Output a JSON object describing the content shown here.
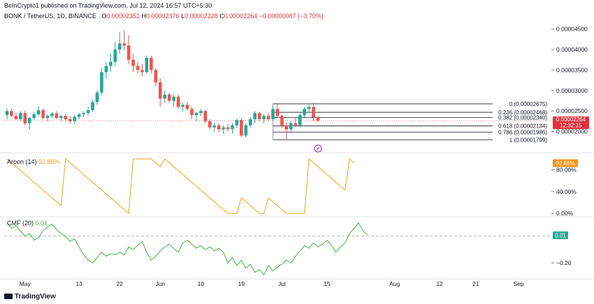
{
  "attribution": "BeInCrypto1 published on TradingView.com, Jul 12, 2024 16:57 UTC+5:30",
  "symbol_line": "BONK / TetherUS, 1D, BINANCE",
  "ohlc": {
    "o_label": "O",
    "o_value": "0.00002351",
    "h_label": "H",
    "h_value": "0.00002376",
    "l_label": "L",
    "l_value": "0.00002228",
    "c_label": "C",
    "c_value": "0.00002264",
    "change": "−0.00000087 (−3.70%)"
  },
  "brand": "TradingView",
  "colors": {
    "up": "#26a69a",
    "down": "#ef5350",
    "aroon": "#f7a21b",
    "cmf": "#4caf50",
    "fib": "#131722",
    "price_tag": "#e0313c",
    "aroon_tag": "#f7931a",
    "cmf_tag": "#22ab94"
  },
  "chart_data": [
    {
      "type": "candlestick",
      "title": "BONK / TetherUS, 1D, BINANCE",
      "x_tick_labels": [
        "May",
        "13",
        "22",
        "Jun",
        "10",
        "19",
        "Jul",
        "15",
        "Aug",
        "12",
        "21",
        "Sep"
      ],
      "y_tick_labels": [
        "0.00004500",
        "0.00004000",
        "0.00003500",
        "0.00003000",
        "0.00002500",
        "0.00002000"
      ],
      "ylim": [
        1.55e-05,
        4.7e-05
      ],
      "current_price_label": "0.00002264",
      "countdown_label": "12:32:15",
      "candles_ohlc": [
        [
          2.4e-05,
          2.56e-05,
          2.3e-05,
          2.5e-05
        ],
        [
          2.5e-05,
          2.56e-05,
          2.35e-05,
          2.38e-05
        ],
        [
          2.38e-05,
          2.46e-05,
          2.28e-05,
          2.3e-05
        ],
        [
          2.3e-05,
          2.5e-05,
          2.25e-05,
          2.45e-05
        ],
        [
          2.45e-05,
          2.52e-05,
          2.15e-05,
          2.2e-05
        ],
        [
          2.2e-05,
          2.35e-05,
          2.05e-05,
          2.33e-05
        ],
        [
          2.33e-05,
          2.48e-05,
          2.28e-05,
          2.42e-05
        ],
        [
          2.42e-05,
          2.6e-05,
          2.38e-05,
          2.52e-05
        ],
        [
          2.52e-05,
          2.56e-05,
          2.3e-05,
          2.33e-05
        ],
        [
          2.33e-05,
          2.42e-05,
          2.25e-05,
          2.38e-05
        ],
        [
          2.38e-05,
          2.48e-05,
          2.33e-05,
          2.44e-05
        ],
        [
          2.44e-05,
          2.5e-05,
          2.3e-05,
          2.33e-05
        ],
        [
          2.33e-05,
          2.4e-05,
          2.26e-05,
          2.38e-05
        ],
        [
          2.38e-05,
          2.43e-05,
          2.25e-05,
          2.3e-05
        ],
        [
          2.3e-05,
          2.38e-05,
          2.2e-05,
          2.25e-05
        ],
        [
          2.25e-05,
          2.4e-05,
          2.18e-05,
          2.36e-05
        ],
        [
          2.36e-05,
          2.45e-05,
          2.3e-05,
          2.42e-05
        ],
        [
          2.42e-05,
          2.5e-05,
          2.35e-05,
          2.45e-05
        ],
        [
          2.45e-05,
          2.6e-05,
          2.4e-05,
          2.52e-05
        ],
        [
          2.52e-05,
          2.78e-05,
          2.48e-05,
          2.72e-05
        ],
        [
          2.72e-05,
          3e-05,
          2.65e-05,
          2.95e-05
        ],
        [
          2.95e-05,
          3.55e-05,
          2.9e-05,
          3.45e-05
        ],
        [
          3.45e-05,
          3.7e-05,
          3.3e-05,
          3.6e-05
        ],
        [
          3.6e-05,
          3.9e-05,
          3.45e-05,
          3.7e-05
        ],
        [
          3.7e-05,
          4.2e-05,
          3.6e-05,
          4e-05
        ],
        [
          4e-05,
          4.42e-05,
          3.9e-05,
          4.15e-05
        ],
        [
          4.15e-05,
          4.48e-05,
          3.98e-05,
          4.1e-05
        ],
        [
          4.1e-05,
          4.35e-05,
          3.65e-05,
          3.75e-05
        ],
        [
          3.75e-05,
          3.9e-05,
          3.45e-05,
          3.6e-05
        ],
        [
          3.6e-05,
          3.7e-05,
          3.42e-05,
          3.5e-05
        ],
        [
          3.5e-05,
          3.65e-05,
          3.35e-05,
          3.45e-05
        ],
        [
          3.45e-05,
          3.85e-05,
          3.4e-05,
          3.8e-05
        ],
        [
          3.8e-05,
          3.85e-05,
          3.42e-05,
          3.5e-05
        ],
        [
          3.5e-05,
          3.55e-05,
          3.1e-05,
          3.2e-05
        ],
        [
          3.2e-05,
          3.3e-05,
          2.6e-05,
          2.8e-05
        ],
        [
          2.8e-05,
          3e-05,
          2.7e-05,
          2.9e-05
        ],
        [
          2.9e-05,
          2.95e-05,
          2.7e-05,
          2.75e-05
        ],
        [
          2.75e-05,
          2.9e-05,
          2.62e-05,
          2.85e-05
        ],
        [
          2.85e-05,
          2.9e-05,
          2.55e-05,
          2.6e-05
        ],
        [
          2.6e-05,
          2.7e-05,
          2.48e-05,
          2.65e-05
        ],
        [
          2.65e-05,
          2.72e-05,
          2.5e-05,
          2.55e-05
        ],
        [
          2.55e-05,
          2.6e-05,
          2.3e-05,
          2.4e-05
        ],
        [
          2.4e-05,
          2.48e-05,
          2.25e-05,
          2.45e-05
        ],
        [
          2.45e-05,
          2.55e-05,
          2.38e-05,
          2.5e-05
        ],
        [
          2.5e-05,
          2.52e-05,
          2.2e-05,
          2.25e-05
        ],
        [
          2.25e-05,
          2.3e-05,
          2.05e-05,
          2.1e-05
        ],
        [
          2.1e-05,
          2.22e-05,
          2e-05,
          2.15e-05
        ],
        [
          2.15e-05,
          2.2e-05,
          1.98e-05,
          2.05e-05
        ],
        [
          2.05e-05,
          2.15e-05,
          1.95e-05,
          2.1e-05
        ],
        [
          2.1e-05,
          2.18e-05,
          2e-05,
          2.06e-05
        ],
        [
          2.06e-05,
          2.2e-05,
          1.95e-05,
          2.15e-05
        ],
        [
          2.15e-05,
          2.32e-05,
          2.08e-05,
          2.28e-05
        ],
        [
          2.28e-05,
          2.33e-05,
          1.86e-05,
          1.9e-05
        ],
        [
          1.9e-05,
          2.2e-05,
          1.85e-05,
          2.15e-05
        ],
        [
          2.15e-05,
          2.35e-05,
          2.1e-05,
          2.3e-05
        ],
        [
          2.3e-05,
          2.5e-05,
          2.2e-05,
          2.45e-05
        ],
        [
          2.45e-05,
          2.48e-05,
          2.25e-05,
          2.3e-05
        ],
        [
          2.3e-05,
          2.42e-05,
          2.2e-05,
          2.38e-05
        ],
        [
          2.38e-05,
          2.45e-05,
          2.25e-05,
          2.3e-05
        ],
        [
          2.3e-05,
          2.62e-05,
          2.25e-05,
          2.55e-05
        ],
        [
          2.55e-05,
          2.67e-05,
          2.35e-05,
          2.38e-05
        ],
        [
          2.38e-05,
          2.42e-05,
          2.08e-05,
          2.15e-05
        ],
        [
          2.15e-05,
          2.22e-05,
          1.8e-05,
          2.05e-05
        ],
        [
          2.05e-05,
          2.25e-05,
          2e-05,
          2.2e-05
        ],
        [
          2.2e-05,
          2.35e-05,
          2.1e-05,
          2.15e-05
        ],
        [
          2.15e-05,
          2.45e-05,
          2.1e-05,
          2.4e-05
        ],
        [
          2.4e-05,
          2.6e-05,
          2.35e-05,
          2.55e-05
        ],
        [
          2.55e-05,
          2.65e-05,
          2.45e-05,
          2.6e-05
        ],
        [
          2.6e-05,
          2.7e-05,
          2.25e-05,
          2.351e-05
        ],
        [
          2.351e-05,
          2.376e-05,
          2.228e-05,
          2.264e-05
        ]
      ],
      "fibonacci": [
        {
          "label": "0 (0.00002675)",
          "value": 2.675e-05
        },
        {
          "label": "0.236 (0.00002468)",
          "value": 2.468e-05
        },
        {
          "label": "0.382 (0.00002340)",
          "value": 2.34e-05
        },
        {
          "label": "0.618 (0.00002134)",
          "value": 2.134e-05
        },
        {
          "label": "0.786 (0.00001986)",
          "value": 1.986e-05
        },
        {
          "label": "1 (0.00001799)",
          "value": 1.799e-05
        }
      ]
    },
    {
      "type": "line",
      "title": "Aroon (14)",
      "current_label": "92.86%",
      "y_tick_labels": [
        "80.00%",
        "40.00%",
        "0.00%"
      ],
      "ylim": [
        -5,
        105
      ],
      "values": [
        100,
        92.9,
        85.7,
        78.6,
        71.4,
        64.3,
        57.1,
        50,
        42.9,
        35.7,
        28.6,
        21.4,
        14.3,
        100,
        92.9,
        85.7,
        78.6,
        71.4,
        64.3,
        57.1,
        50,
        42.9,
        35.7,
        28.6,
        21.4,
        14.3,
        7.1,
        0,
        100,
        100,
        100,
        100,
        100,
        92.9,
        85.7,
        100,
        92.9,
        85.7,
        78.6,
        71.4,
        64.3,
        57.1,
        50,
        42.9,
        35.7,
        28.6,
        21.4,
        14.3,
        7.1,
        0,
        0,
        0,
        28.6,
        21.4,
        14.3,
        7.1,
        0,
        0,
        28.6,
        21.4,
        14.3,
        7.1,
        0,
        0,
        0,
        0,
        0,
        100,
        92.9,
        85.7,
        78.6,
        71.4,
        64.3,
        57.1,
        50,
        42.9,
        100,
        92.86
      ],
      "legend_value": "92.86%"
    },
    {
      "type": "line",
      "title": "CMF (20)",
      "legend_value": "0.01",
      "current_label": "0.01",
      "y_tick_labels": [
        "−0.20"
      ],
      "ylim": [
        -0.32,
        0.14
      ],
      "zero_line": 0,
      "values": [
        0.1,
        0.06,
        0.08,
        0.04,
        0.0,
        0.02,
        -0.03,
        -0.01,
        0.04,
        0.07,
        0.09,
        0.05,
        0.02,
        0.0,
        -0.04,
        -0.02,
        -0.08,
        -0.14,
        -0.18,
        -0.2,
        -0.16,
        -0.12,
        -0.15,
        -0.13,
        -0.14,
        -0.12,
        -0.14,
        -0.08,
        -0.1,
        -0.07,
        -0.04,
        -0.12,
        -0.18,
        -0.15,
        -0.11,
        -0.08,
        -0.06,
        -0.09,
        -0.12,
        -0.05,
        -0.03,
        -0.06,
        -0.09,
        -0.07,
        -0.1,
        -0.08,
        -0.11,
        -0.09,
        -0.12,
        -0.2,
        -0.16,
        -0.22,
        -0.18,
        -0.24,
        -0.21,
        -0.27,
        -0.25,
        -0.29,
        -0.22,
        -0.26,
        -0.23,
        -0.21,
        -0.18,
        -0.2,
        -0.15,
        -0.11,
        -0.07,
        -0.09,
        -0.05,
        -0.08,
        -0.06,
        -0.03,
        -0.07,
        -0.12,
        -0.08,
        -0.05,
        0.02,
        0.06,
        0.1,
        0.04,
        0.01
      ]
    }
  ]
}
